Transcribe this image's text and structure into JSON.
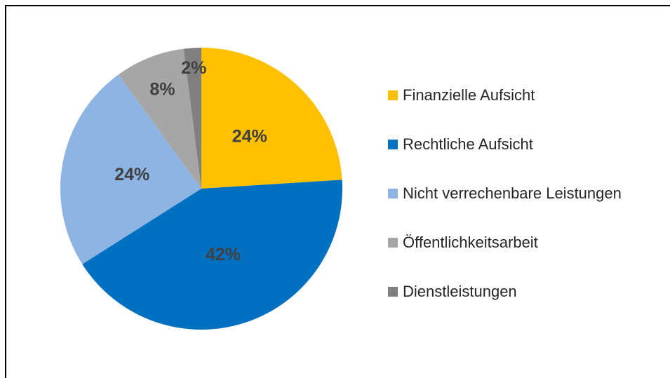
{
  "chart_data": {
    "type": "pie",
    "categories": [
      "Finanzielle Aufsicht",
      "Rechtliche Aufsicht",
      "Nicht verrechenbare Leistungen",
      "Öffentlichkeitsarbeit",
      "Dienstleistungen"
    ],
    "values": [
      24,
      42,
      24,
      8,
      2
    ],
    "value_labels": [
      "24%",
      "42%",
      "24%",
      "8%",
      "2%"
    ],
    "colors": [
      "#FFC000",
      "#0070C0",
      "#8EB4E3",
      "#A6A6A6",
      "#808080"
    ],
    "legend": "right"
  }
}
